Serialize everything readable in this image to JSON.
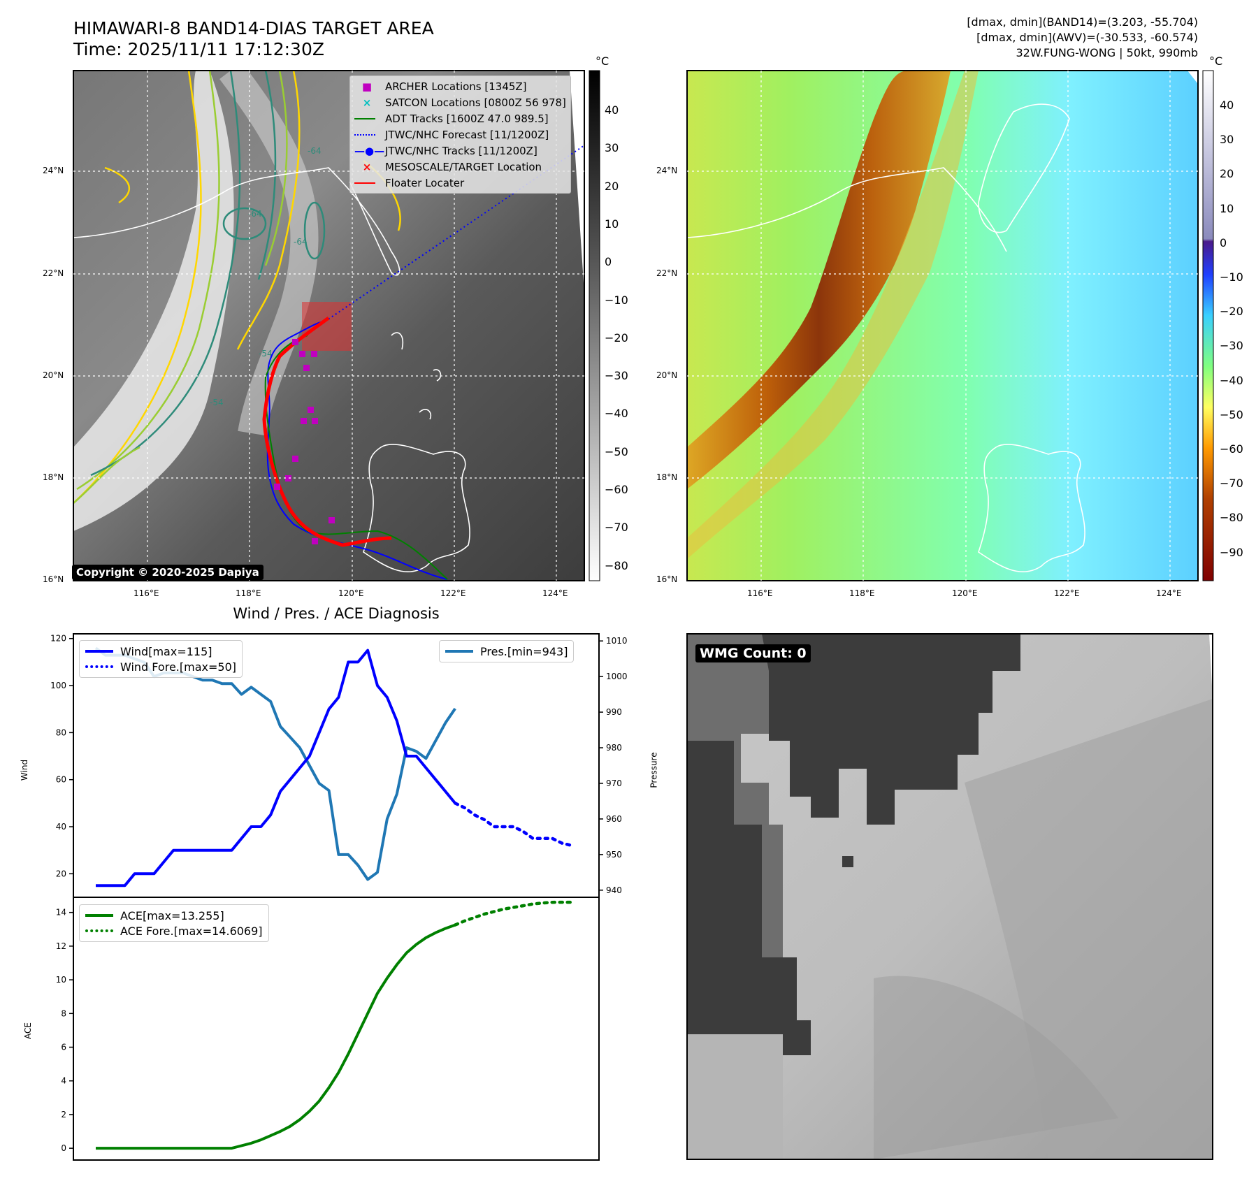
{
  "header": {
    "title_line1": "HIMAWARI-8 BAND14-DIAS TARGET AREA",
    "title_line2": "Time: 2025/11/11 17:12:30Z",
    "info_line1": "[dmax, dmin](BAND14)=(3.203, -55.704)",
    "info_line2": "[dmax, dmin](AWV)=(-30.533, -60.574)",
    "info_line3": "32W.FUNG-WONG | 50kt, 990mb"
  },
  "map_ir": {
    "lat_labels": [
      "24°N",
      "22°N",
      "20°N",
      "18°N",
      "16°N"
    ],
    "lon_labels": [
      "116°E",
      "118°E",
      "120°E",
      "122°E",
      "124°E"
    ],
    "copyright": "Copyright © 2020-2025 Dapiya",
    "colorbar_unit": "°C",
    "colorbar_ticks": [
      "40",
      "30",
      "20",
      "10",
      "0",
      "−10",
      "−20",
      "−30",
      "−40",
      "−50",
      "−60",
      "−70",
      "−80"
    ],
    "contour_labels": [
      "-64",
      "-64",
      "-64",
      "-54",
      "-54"
    ],
    "legend": [
      {
        "marker": "■",
        "color": "#c000c0",
        "label": "ARCHER Locations [1345Z]"
      },
      {
        "marker": "×",
        "color": "#00c0c0",
        "label": "SATCON Locations [0800Z 56 978]"
      },
      {
        "marker": "line",
        "color": "#008000",
        "label": "ADT Tracks [1600Z 47.0 989.5]"
      },
      {
        "marker": "dotted",
        "color": "#0000ff",
        "label": "JTWC/NHC Forecast [11/1200Z]"
      },
      {
        "marker": "line-dot",
        "color": "#0000ff",
        "label": "JTWC/NHC Tracks [11/1200Z]"
      },
      {
        "marker": "×",
        "color": "#ff0000",
        "label": "MESOSCALE/TARGET Location"
      },
      {
        "marker": "line",
        "color": "#ff0000",
        "label": "Floater Locater"
      }
    ]
  },
  "map_awv": {
    "lat_labels": [
      "24°N",
      "22°N",
      "20°N",
      "18°N",
      "16°N"
    ],
    "lon_labels": [
      "116°E",
      "118°E",
      "120°E",
      "122°E",
      "124°E"
    ],
    "colorbar_unit": "°C",
    "colorbar_ticks": [
      "40",
      "30",
      "20",
      "10",
      "0",
      "−10",
      "−20",
      "−30",
      "−40",
      "−50",
      "−60",
      "−70",
      "−80",
      "−90"
    ]
  },
  "wmg_panel": {
    "badge": "WMG Count: 0"
  },
  "chart_data": [
    {
      "type": "line",
      "title": "Wind / Pres. / ACE Diagnosis",
      "ylabel": "Wind",
      "y2label": "Pressure",
      "ylim": [
        10,
        122
      ],
      "y2lim": [
        938,
        1012
      ],
      "yticks": [
        20,
        40,
        60,
        80,
        100,
        120
      ],
      "y2ticks": [
        940,
        950,
        960,
        970,
        980,
        990,
        1000,
        1010
      ],
      "series": [
        {
          "name": "Wind[max=115]",
          "color": "#0000ff",
          "style": "solid",
          "values": [
            15,
            15,
            15,
            15,
            20,
            20,
            20,
            25,
            30,
            30,
            30,
            30,
            30,
            30,
            30,
            35,
            40,
            40,
            45,
            55,
            60,
            65,
            70,
            80,
            90,
            95,
            110,
            110,
            115,
            100,
            95,
            85,
            70,
            70,
            65,
            60,
            55,
            50
          ]
        },
        {
          "name": "Wind Fore.[max=50]",
          "color": "#0000ff",
          "style": "dotted",
          "values": [
            50,
            48,
            45,
            43,
            40,
            40,
            40,
            38,
            35,
            35,
            35,
            33,
            32
          ]
        },
        {
          "name": "Pres.[min=943]",
          "color": "#1f77b4",
          "style": "solid",
          "values": [
            1008,
            1006,
            1006,
            1006,
            1005,
            1004,
            1000,
            1001,
            1001,
            1001,
            1000,
            999,
            999,
            998,
            998,
            995,
            997,
            995,
            993,
            986,
            983,
            980,
            975,
            970,
            968,
            950,
            950,
            947,
            943,
            945,
            960,
            967,
            980,
            979,
            977,
            982,
            987,
            991
          ]
        }
      ]
    },
    {
      "type": "line",
      "ylabel": "ACE",
      "ylim": [
        -0.7,
        14.9
      ],
      "yticks": [
        0,
        2,
        4,
        6,
        8,
        10,
        12,
        14
      ],
      "series": [
        {
          "name": "ACE[max=13.255]",
          "color": "#008000",
          "style": "solid",
          "values": [
            0,
            0,
            0,
            0,
            0,
            0,
            0,
            0,
            0,
            0,
            0,
            0,
            0,
            0,
            0,
            0.15,
            0.3,
            0.5,
            0.75,
            1.0,
            1.3,
            1.7,
            2.2,
            2.8,
            3.6,
            4.5,
            5.6,
            6.8,
            8.0,
            9.2,
            10.1,
            10.9,
            11.6,
            12.1,
            12.5,
            12.8,
            13.05,
            13.255
          ]
        },
        {
          "name": "ACE Fore.[max=14.6069]",
          "color": "#008000",
          "style": "dotted",
          "values": [
            13.255,
            13.5,
            13.7,
            13.9,
            14.05,
            14.2,
            14.3,
            14.4,
            14.5,
            14.56,
            14.6,
            14.6069,
            14.6069
          ]
        }
      ]
    }
  ]
}
